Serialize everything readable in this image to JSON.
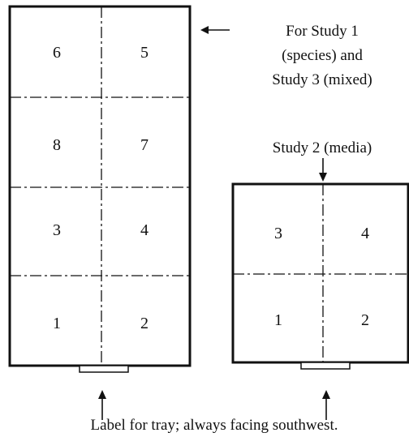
{
  "colors": {
    "line": "#111111",
    "background": "#ffffff"
  },
  "tray_a": {
    "cells": {
      "r1c1": "6",
      "r1c2": "5",
      "r2c1": "8",
      "r2c2": "7",
      "r3c1": "3",
      "r3c2": "4",
      "r4c1": "1",
      "r4c2": "2"
    },
    "caption": {
      "line1": "For Study 1",
      "line2": "(species) and",
      "line3": "Study 3 (mixed)"
    }
  },
  "tray_b": {
    "cells": {
      "r1c1": "3",
      "r1c2": "4",
      "r2c1": "1",
      "r2c2": "2"
    },
    "caption": "Study 2 (media)"
  },
  "footer": {
    "label": "Label for tray; always facing southwest."
  }
}
